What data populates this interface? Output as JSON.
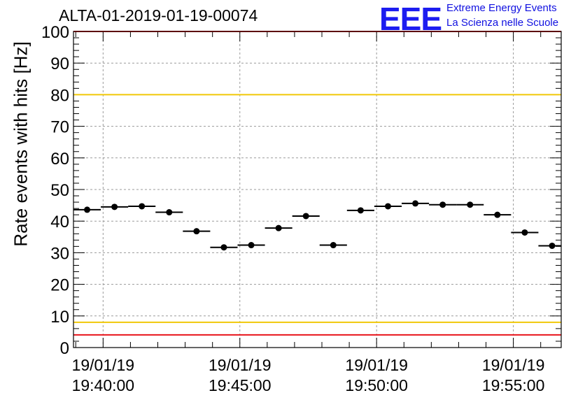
{
  "header": {
    "title": "ALTA-01-2019-01-19-00074",
    "logo_text": "EEE",
    "logo_line1": "Extreme Energy Events",
    "logo_line2": "La Scienza nelle Scuole"
  },
  "chart_data": {
    "type": "scatter",
    "title": "ALTA-01-2019-01-19-00074",
    "ylabel": "Rate events with hits [Hz]",
    "xlabel": "",
    "ylim": [
      0,
      100
    ],
    "yticks": [
      0,
      10,
      20,
      30,
      40,
      50,
      60,
      70,
      80,
      90,
      100
    ],
    "x_range": [
      "19/01/19 19:38:55",
      "19/01/19 19:56:45"
    ],
    "xticks": [
      {
        "date": "19/01/19",
        "time": "19:40:00"
      },
      {
        "date": "19/01/19",
        "time": "19:45:00"
      },
      {
        "date": "19/01/19",
        "time": "19:50:00"
      },
      {
        "date": "19/01/19",
        "time": "19:55:00"
      }
    ],
    "grid": true,
    "error_bars": "horizontal (bin width)",
    "reference_lines": [
      {
        "y": 100,
        "color": "#e8141c"
      },
      {
        "y": 80,
        "color": "#f0c808"
      },
      {
        "y": 8,
        "color": "#f0c808"
      },
      {
        "y": 4,
        "color": "#e8141c"
      }
    ],
    "points": [
      {
        "x": "19:39:25",
        "y": 43.6
      },
      {
        "x": "19:40:25",
        "y": 44.5
      },
      {
        "x": "19:41:25",
        "y": 44.7
      },
      {
        "x": "19:42:25",
        "y": 42.8
      },
      {
        "x": "19:43:25",
        "y": 36.8
      },
      {
        "x": "19:44:25",
        "y": 31.7
      },
      {
        "x": "19:45:25",
        "y": 32.4
      },
      {
        "x": "19:46:25",
        "y": 37.8
      },
      {
        "x": "19:47:25",
        "y": 41.6
      },
      {
        "x": "19:48:25",
        "y": 32.4
      },
      {
        "x": "19:49:25",
        "y": 43.4
      },
      {
        "x": "19:50:25",
        "y": 44.7
      },
      {
        "x": "19:51:25",
        "y": 45.6
      },
      {
        "x": "19:52:25",
        "y": 45.2
      },
      {
        "x": "19:53:25",
        "y": 45.2
      },
      {
        "x": "19:54:25",
        "y": 42.0
      },
      {
        "x": "19:55:25",
        "y": 36.4
      },
      {
        "x": "19:56:25",
        "y": 32.2
      }
    ],
    "colors": {
      "points": "#000000",
      "grid": "#9a9a9a"
    }
  }
}
